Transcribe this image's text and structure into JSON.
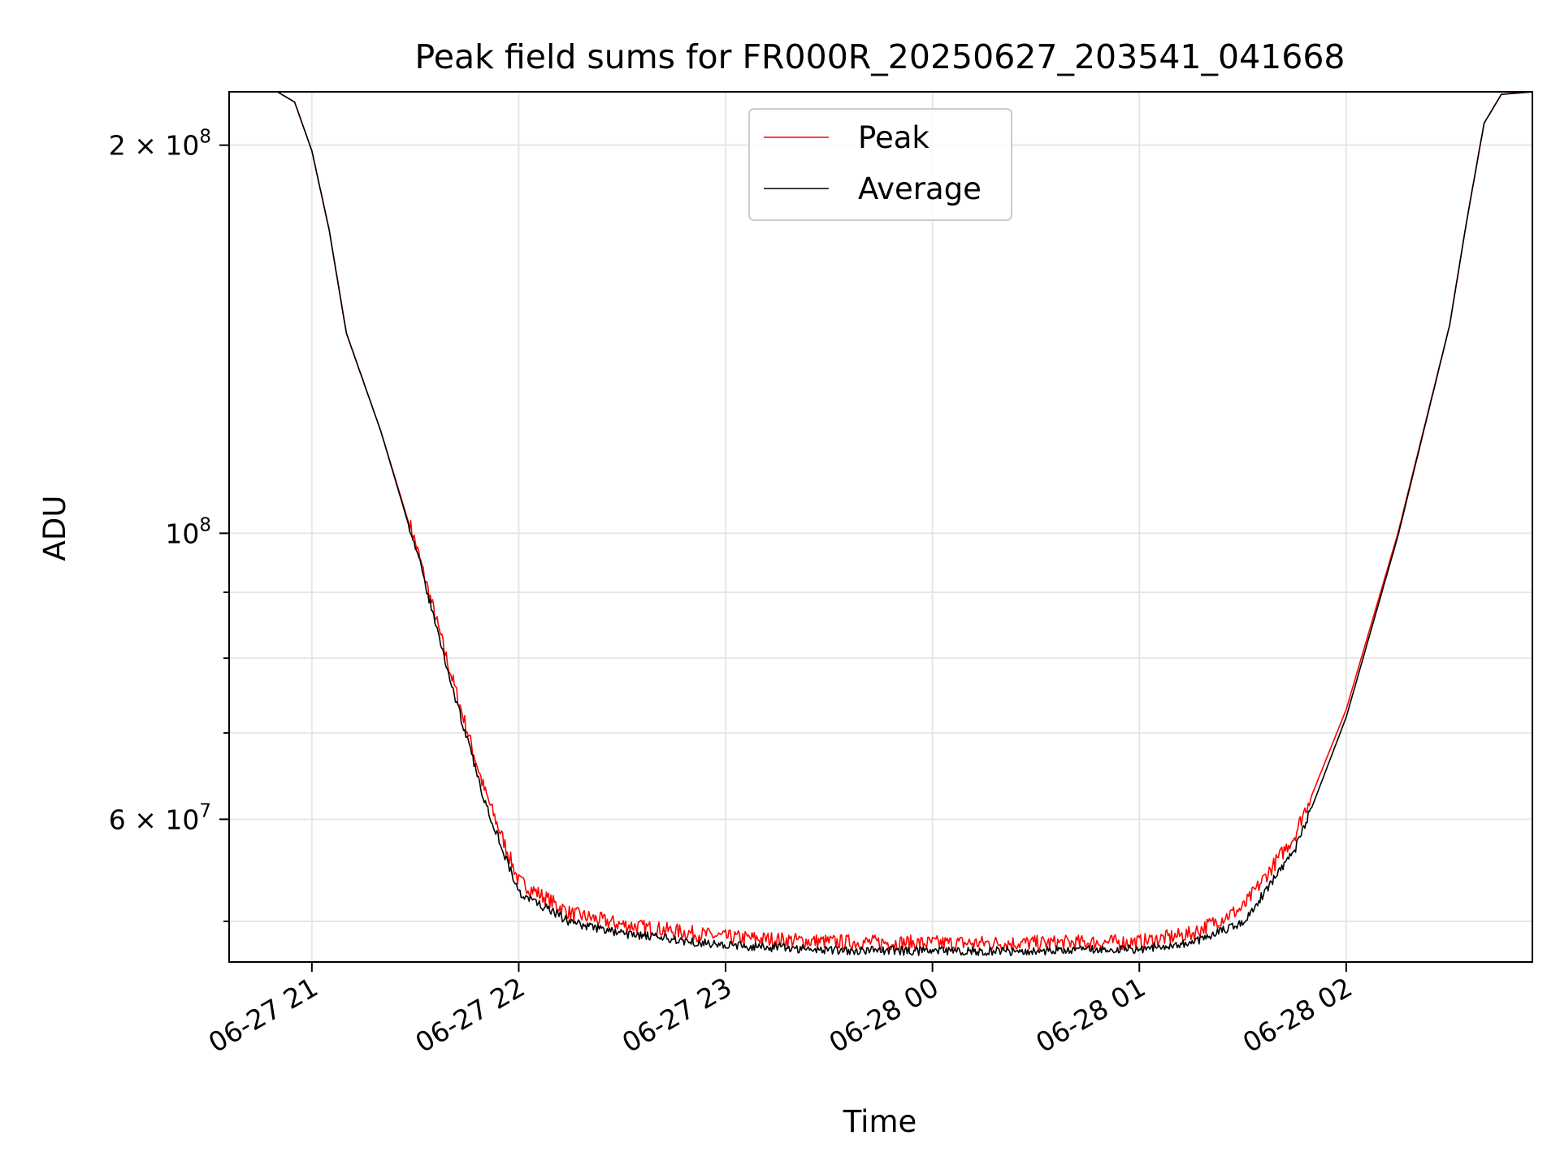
{
  "chart_data": {
    "type": "line",
    "title": "Peak field sums for FR000R_20250627_203541_041668",
    "xlabel": "Time",
    "ylabel": "ADU",
    "yscale": "log",
    "grid": true,
    "legend_placement": "upper-center",
    "xlim": [
      "2025-06-27 20:36",
      "2025-06-28 02:54"
    ],
    "ylim": [
      46500000,
      220000000
    ],
    "x_ticks": [
      {
        "value": "2025-06-27 21:00",
        "label": "06-27 21"
      },
      {
        "value": "2025-06-27 22:00",
        "label": "06-27 22"
      },
      {
        "value": "2025-06-27 23:00",
        "label": "06-27 23"
      },
      {
        "value": "2025-06-28 00:00",
        "label": "06-28 00"
      },
      {
        "value": "2025-06-28 01:00",
        "label": "06-28 01"
      },
      {
        "value": "2025-06-28 02:00",
        "label": "06-28 02"
      }
    ],
    "y_major_ticks": [
      {
        "value": 100000000,
        "base": "10",
        "exp": "8"
      },
      {
        "value": 60000000,
        "base": "6 × 10",
        "exp": "7"
      },
      {
        "value": 200000000,
        "base": "2 × 10",
        "exp": "8"
      }
    ],
    "y_minor_ticks": [
      50000000,
      70000000,
      80000000,
      90000000
    ],
    "series": [
      {
        "name": "Peak",
        "color": "#ff0000",
        "noise": 0.012,
        "points": [
          [
            "2025-06-27 20:36",
            220000000
          ],
          [
            "2025-06-27 20:50",
            220000000
          ],
          [
            "2025-06-27 20:55",
            216000000
          ],
          [
            "2025-06-27 21:00",
            198000000
          ],
          [
            "2025-06-27 21:05",
            172000000
          ],
          [
            "2025-06-27 21:10",
            143000000
          ],
          [
            "2025-06-27 21:20",
            120000000
          ],
          [
            "2025-06-27 21:30",
            98000000
          ],
          [
            "2025-06-27 21:40",
            78000000
          ],
          [
            "2025-06-27 21:50",
            63000000
          ],
          [
            "2025-06-27 22:00",
            53500000
          ],
          [
            "2025-06-27 22:15",
            50500000
          ],
          [
            "2025-06-27 22:30",
            49500000
          ],
          [
            "2025-06-27 23:00",
            48400000
          ],
          [
            "2025-06-27 23:30",
            48000000
          ],
          [
            "2025-06-28 00:00",
            47900000
          ],
          [
            "2025-06-28 00:30",
            47900000
          ],
          [
            "2025-06-28 01:00",
            48000000
          ],
          [
            "2025-06-28 01:15",
            48700000
          ],
          [
            "2025-06-28 01:30",
            51000000
          ],
          [
            "2025-06-28 01:45",
            58000000
          ],
          [
            "2025-06-28 02:00",
            73000000
          ],
          [
            "2025-06-28 02:15",
            100000000
          ],
          [
            "2025-06-28 02:30",
            145000000
          ],
          [
            "2025-06-28 02:35",
            175000000
          ],
          [
            "2025-06-28 02:40",
            208000000
          ],
          [
            "2025-06-28 02:45",
            219000000
          ],
          [
            "2025-06-28 02:54",
            220000000
          ]
        ]
      },
      {
        "name": "Average",
        "color": "#000000",
        "noise": 0.007,
        "points": [
          [
            "2025-06-27 20:36",
            220000000
          ],
          [
            "2025-06-27 20:50",
            220000000
          ],
          [
            "2025-06-27 20:55",
            216000000
          ],
          [
            "2025-06-27 21:00",
            198000000
          ],
          [
            "2025-06-27 21:05",
            172000000
          ],
          [
            "2025-06-27 21:10",
            143000000
          ],
          [
            "2025-06-27 21:20",
            120000000
          ],
          [
            "2025-06-27 21:30",
            97500000
          ],
          [
            "2025-06-27 21:40",
            77000000
          ],
          [
            "2025-06-27 21:50",
            62000000
          ],
          [
            "2025-06-27 22:00",
            52500000
          ],
          [
            "2025-06-27 22:15",
            49800000
          ],
          [
            "2025-06-27 22:30",
            48800000
          ],
          [
            "2025-06-27 23:00",
            47800000
          ],
          [
            "2025-06-27 23:30",
            47400000
          ],
          [
            "2025-06-28 00:00",
            47300000
          ],
          [
            "2025-06-28 00:30",
            47300000
          ],
          [
            "2025-06-28 01:00",
            47500000
          ],
          [
            "2025-06-28 01:15",
            48000000
          ],
          [
            "2025-06-28 01:30",
            49800000
          ],
          [
            "2025-06-28 01:45",
            56500000
          ],
          [
            "2025-06-28 02:00",
            72000000
          ],
          [
            "2025-06-28 02:15",
            99500000
          ],
          [
            "2025-06-28 02:30",
            145000000
          ],
          [
            "2025-06-28 02:35",
            175000000
          ],
          [
            "2025-06-28 02:40",
            208000000
          ],
          [
            "2025-06-28 02:45",
            219000000
          ],
          [
            "2025-06-28 02:54",
            220000000
          ]
        ]
      }
    ]
  }
}
